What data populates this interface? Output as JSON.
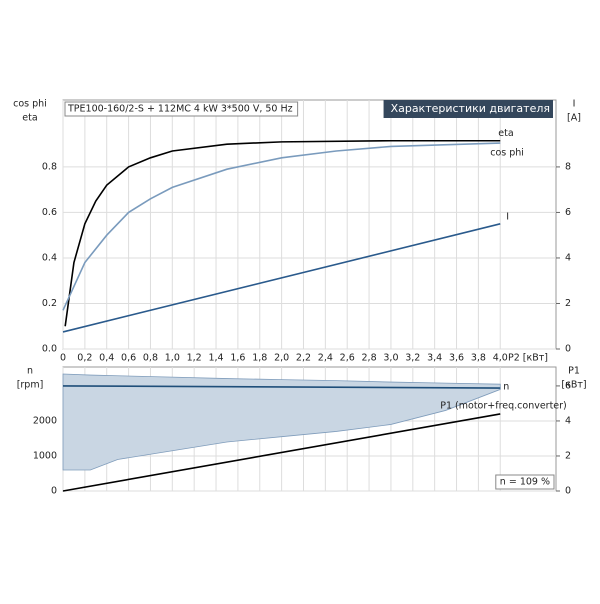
{
  "chart_data": [
    {
      "type": "line",
      "title": "TPE100-160/2-S + 112MC  4 kW  3*500 V, 50 Hz",
      "subtitle": "Характеристики двигателя",
      "ylabel": [
        "cos phi",
        "eta"
      ],
      "y2label": [
        "I",
        "[A]"
      ],
      "xlabel": "P2 [кВт]",
      "xlim": [
        0,
        4.51
      ],
      "ylim": [
        0,
        1.094
      ],
      "y2lim": [
        0,
        10.94
      ],
      "xticks": [
        {
          "value": 0,
          "label": "0"
        },
        {
          "value": 0.2,
          "label": "0,2"
        },
        {
          "value": 0.4,
          "label": "0,4"
        },
        {
          "value": 0.6,
          "label": "0,6"
        },
        {
          "value": 0.8,
          "label": "0,8"
        },
        {
          "value": 1.0,
          "label": "1,0"
        },
        {
          "value": 1.2,
          "label": "1,2"
        },
        {
          "value": 1.4,
          "label": "1,4"
        },
        {
          "value": 1.6,
          "label": "1,6"
        },
        {
          "value": 1.8,
          "label": "1,8"
        },
        {
          "value": 2.0,
          "label": "2,0"
        },
        {
          "value": 2.2,
          "label": "2,2"
        },
        {
          "value": 2.4,
          "label": "2,4"
        },
        {
          "value": 2.6,
          "label": "2,6"
        },
        {
          "value": 2.8,
          "label": "2,8"
        },
        {
          "value": 3.0,
          "label": "3,0"
        },
        {
          "value": 3.2,
          "label": "3,2"
        },
        {
          "value": 3.4,
          "label": "3,4"
        },
        {
          "value": 3.6,
          "label": "3,6"
        },
        {
          "value": 3.8,
          "label": "3,8"
        },
        {
          "value": 4.0,
          "label": "4,0"
        }
      ],
      "yticks": [
        {
          "value": 0,
          "label": "0.0"
        },
        0.2,
        0.4,
        0.6,
        0.8
      ],
      "y2ticks": [
        0,
        2,
        4,
        6,
        8
      ],
      "grid": true,
      "series": [
        {
          "name": "eta",
          "color": "#000000",
          "x": [
            0.02,
            0.1,
            0.2,
            0.3,
            0.4,
            0.6,
            0.8,
            1.0,
            1.5,
            2.0,
            3.0,
            4.0
          ],
          "values": [
            0.1,
            0.38,
            0.55,
            0.65,
            0.72,
            0.8,
            0.84,
            0.87,
            0.9,
            0.91,
            0.915,
            0.915
          ]
        },
        {
          "name": "cos phi",
          "color": "#7a9bbd",
          "x": [
            0,
            0.2,
            0.4,
            0.6,
            0.8,
            1.0,
            1.5,
            2.0,
            2.5,
            3.0,
            4.0
          ],
          "values": [
            0.17,
            0.38,
            0.5,
            0.6,
            0.66,
            0.71,
            0.79,
            0.84,
            0.87,
            0.89,
            0.905
          ]
        },
        {
          "name": "I",
          "color": "#2a5a8c",
          "axis": "y2",
          "x": [
            0,
            4.0
          ],
          "values": [
            0.75,
            5.5
          ]
        }
      ]
    },
    {
      "type": "line",
      "ylabel": [
        "n",
        "[rpm]"
      ],
      "y2label": [
        "P1",
        "[кВт]"
      ],
      "annotation": "n = 109 %",
      "xlim": [
        0,
        4.51
      ],
      "ylim": [
        0,
        3540
      ],
      "y2lim": [
        0,
        7.08
      ],
      "yticks": [
        0,
        1000,
        2000
      ],
      "y2ticks": [
        0,
        2,
        4,
        6
      ],
      "grid": true,
      "band": {
        "color": "#c9d6e3",
        "x": [
          0,
          0.25,
          0.5,
          1.0,
          1.5,
          2.0,
          2.5,
          3.0,
          3.5,
          4.0
        ],
        "upper": [
          3340,
          3310,
          3290,
          3250,
          3210,
          3180,
          3150,
          3110,
          3080,
          3050
        ],
        "lower": [
          600,
          600,
          900,
          1150,
          1400,
          1550,
          1700,
          1900,
          2300,
          2900
        ]
      },
      "series": [
        {
          "name": "n",
          "color": "#1f4e79",
          "x": [
            0,
            4.0
          ],
          "values": [
            3000,
            2940
          ]
        },
        {
          "name": "P1 (motor+freq.converter)",
          "color": "#000000",
          "axis": "y2",
          "x": [
            0,
            4.0
          ],
          "values": [
            0,
            4.4
          ]
        }
      ]
    }
  ]
}
